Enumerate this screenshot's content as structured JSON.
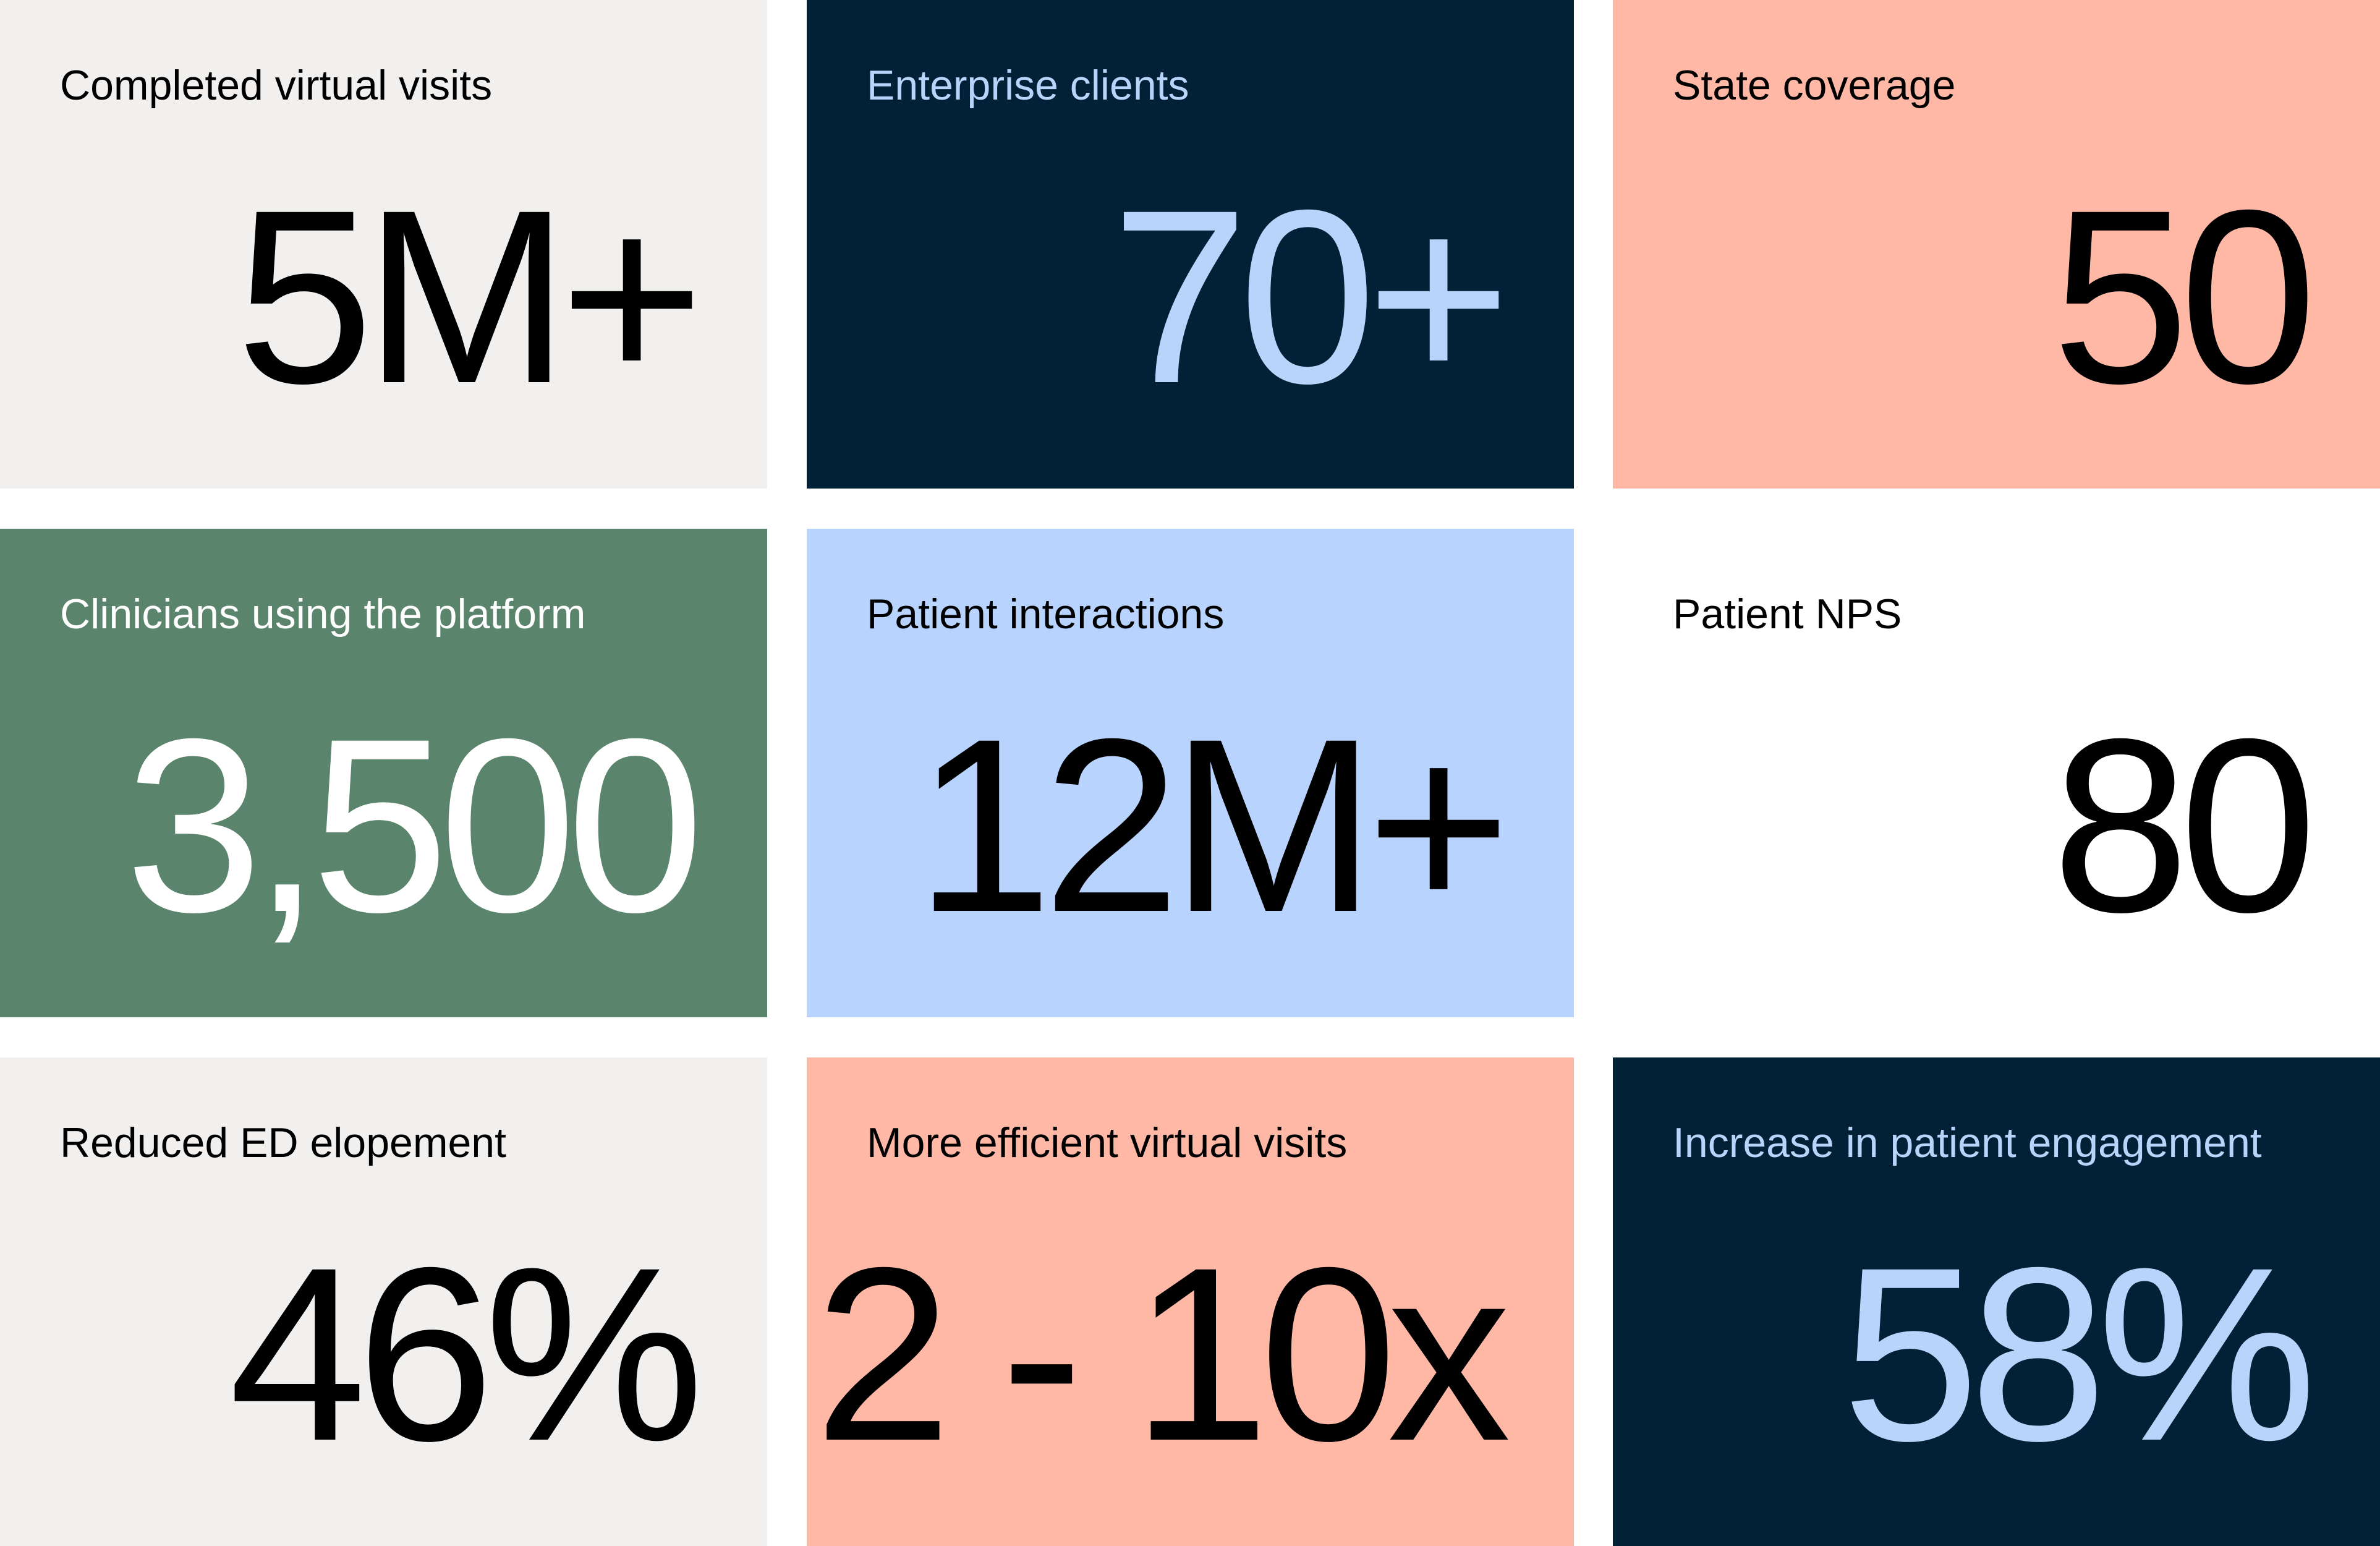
{
  "tiles": [
    {
      "label": "Completed virtual visits",
      "value": "5M+"
    },
    {
      "label": "Enterprise clients",
      "value": "70+"
    },
    {
      "label": "State coverage",
      "value": "50"
    },
    {
      "label": "Clinicians using the platform",
      "value": "3,500"
    },
    {
      "label": "Patient interactions",
      "value": "12M+"
    },
    {
      "label": "Patient NPS",
      "value": "80"
    },
    {
      "label": "Reduced ED elopement",
      "value": "46%"
    },
    {
      "label": "More efficient virtual visits",
      "value": "2 - 10x"
    },
    {
      "label": "Increase in patient engagement",
      "value": "58%"
    }
  ],
  "colors": {
    "light_grey": "#f1f0ee",
    "navy": "#012136",
    "navy_text": "#b7d4fb",
    "salmon": "#ffb8a5",
    "green": "#5b846c",
    "sky": "#b8d3fd",
    "white": "#ffffff"
  }
}
